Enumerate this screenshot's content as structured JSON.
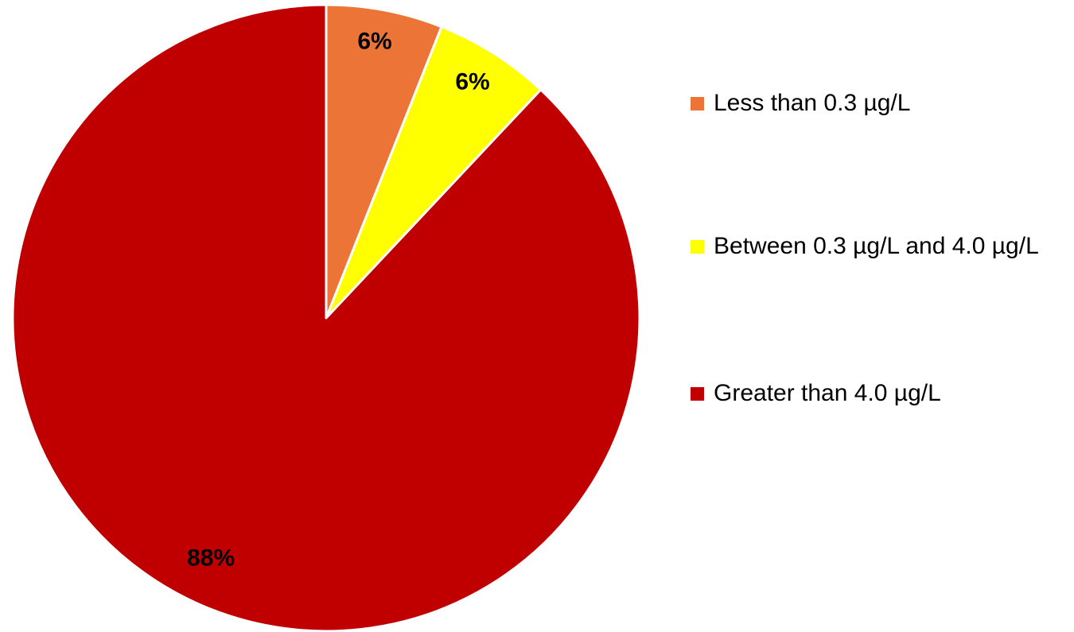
{
  "chart_data": {
    "type": "pie",
    "title": "",
    "start_angle_deg": 0,
    "direction": "clockwise",
    "legend_position": "right",
    "slices": [
      {
        "label": "Less than 0.3 µg/L",
        "value": 6,
        "display": "6%",
        "color": "#ED7437"
      },
      {
        "label": "Between 0.3 µg/L and 4.0 µg/L",
        "value": 6,
        "display": "6%",
        "color": "#FFFF00"
      },
      {
        "label": "Greater than 4.0 µg/L",
        "value": 88,
        "display": "88%",
        "color": "#C00000"
      }
    ]
  }
}
